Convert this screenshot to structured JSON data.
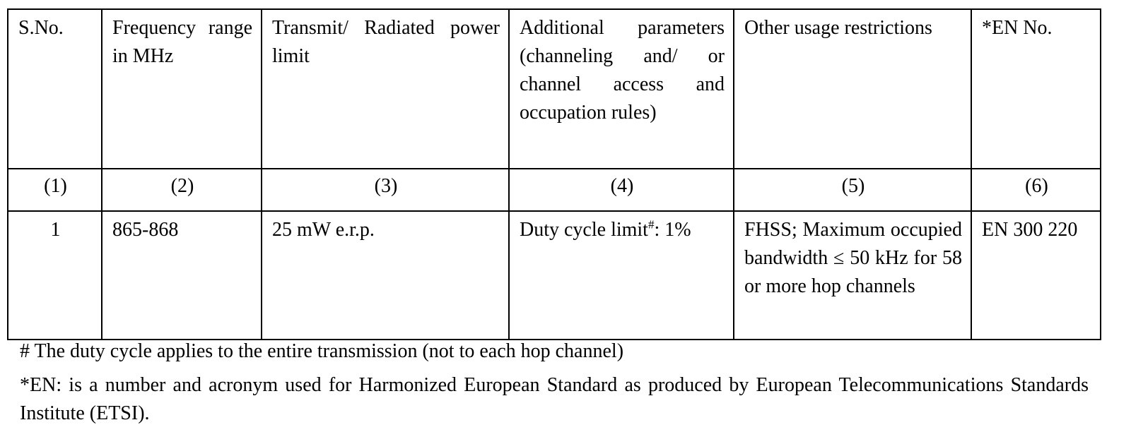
{
  "table": {
    "headers": [
      "S.No.",
      "Frequency range in MHz",
      "Transmit/ Radiated power limit",
      "Additional parameters (channeling and/ or channel access and occupation rules)",
      "Other usage restrictions",
      "*EN No."
    ],
    "column_numbers": [
      "(1)",
      "(2)",
      "(3)",
      "(4)",
      "(5)",
      "(6)"
    ],
    "rows": [
      {
        "sno": "1",
        "frequency": "865-868",
        "power": "25 mW e.r.p.",
        "additional_text": "Duty cycle limit",
        "additional_sup": "#",
        "additional_rest": ": 1%",
        "restrictions": "FHSS; Maximum occupied bandwidth ≤ 50 kHz for 58 or more hop channels",
        "en_no": "EN 300 220"
      }
    ]
  },
  "notes": {
    "duty_cycle": "# The duty cycle applies to the entire transmission (not to each hop channel)",
    "en_definition": "*EN: is a number and acronym used for Harmonized European Standard as produced by European Telecommunications Standards Institute (ETSI)."
  }
}
